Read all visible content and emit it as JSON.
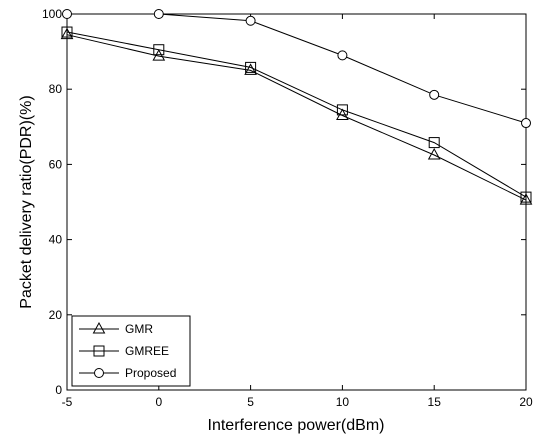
{
  "chart_data": {
    "type": "line",
    "title": "",
    "xlabel": "Interference power(dBm)",
    "ylabel": "Packet delivery ratio(PDR)(%)",
    "x": [
      -5,
      0,
      5,
      10,
      15,
      20
    ],
    "xlim": [
      -5,
      20
    ],
    "ylim": [
      0,
      100
    ],
    "xticks": [
      "-5",
      "0",
      "5",
      "10",
      "15",
      "20"
    ],
    "yticks": [
      "0",
      "20",
      "40",
      "60",
      "80",
      "100"
    ],
    "grid": false,
    "legend_position": "bottom-left",
    "series": [
      {
        "name": "GMR",
        "marker": "triangle",
        "values": [
          94.5,
          88.8,
          85.0,
          73.0,
          62.5,
          50.5
        ]
      },
      {
        "name": "GMREE",
        "marker": "square",
        "values": [
          95.2,
          90.5,
          85.8,
          74.5,
          65.8,
          51.3
        ]
      },
      {
        "name": "Proposed",
        "marker": "circle",
        "values": [
          100,
          100,
          98.2,
          89.0,
          78.5,
          71.0
        ]
      }
    ],
    "line_color": "#000000"
  }
}
